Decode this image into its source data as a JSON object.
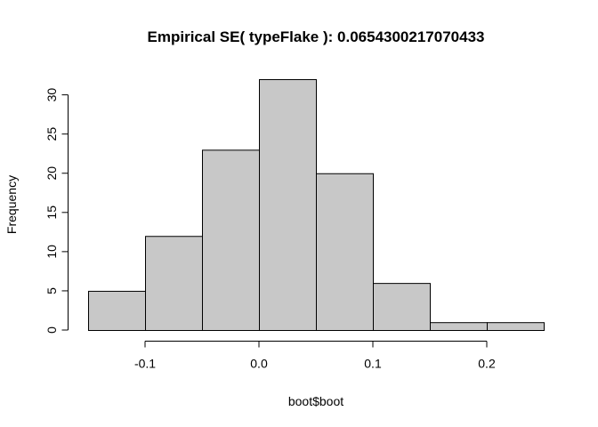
{
  "chart_data": {
    "type": "bar",
    "title": "Empirical SE( typeFlake ):  0.0654300217070433",
    "xlabel": "boot$boot",
    "ylabel": "Frequency",
    "bin_edges": [
      -0.15,
      -0.1,
      -0.05,
      0.0,
      0.05,
      0.1,
      0.15,
      0.2,
      0.25
    ],
    "values": [
      5,
      12,
      23,
      32,
      20,
      6,
      1,
      1
    ],
    "x_ticks": [
      -0.1,
      0.0,
      0.1,
      0.2
    ],
    "x_tick_labels": [
      "-0.1",
      "0.0",
      "0.1",
      "0.2"
    ],
    "y_ticks": [
      0,
      5,
      10,
      15,
      20,
      25,
      30
    ],
    "y_tick_labels": [
      "0",
      "5",
      "10",
      "15",
      "20",
      "25",
      "30"
    ],
    "xlim": [
      -0.15,
      0.25
    ],
    "ylim": [
      0,
      32
    ],
    "grid": false,
    "colors": {
      "bar_fill": "#c8c8c8",
      "bar_stroke": "#000000"
    }
  }
}
